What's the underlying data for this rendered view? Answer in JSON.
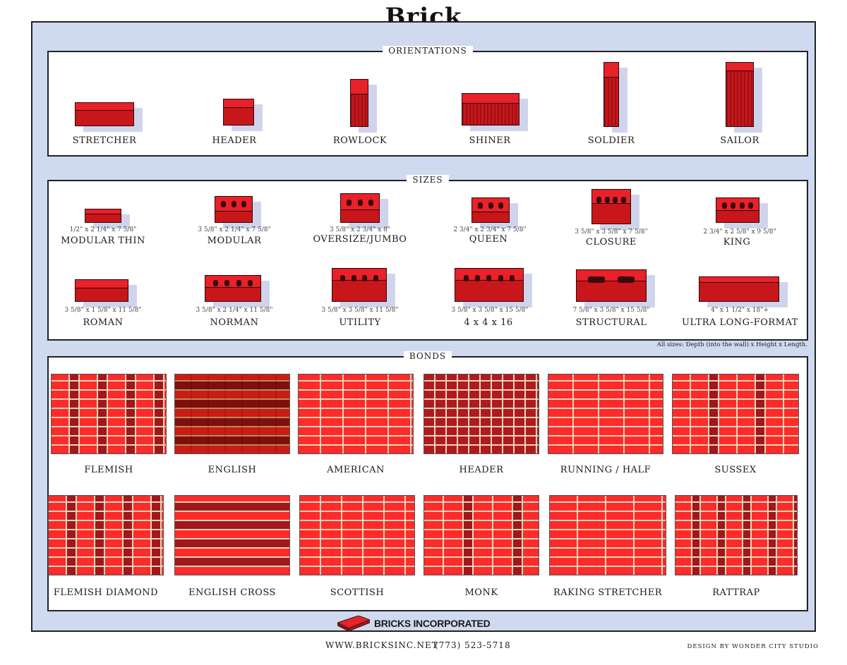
{
  "title": "Brick",
  "orientations": {
    "heading": "ORIENTATIONS",
    "items": [
      "STRETCHER",
      "HEADER",
      "ROWLOCK",
      "SHINER",
      "SOLDIER",
      "SAILOR"
    ]
  },
  "sizes": {
    "heading": "SIZES",
    "row1": [
      {
        "name": "MODULAR THIN",
        "dim": "1/2\" x 2 1/4\" x 7 5/8\""
      },
      {
        "name": "MODULAR",
        "dim": "3 5/8\" x 2 1/4\" x 7 5/8\""
      },
      {
        "name": "OVERSIZE/JUMBO",
        "dim": "3 5/8\" x 2 3/4\" x 8\""
      },
      {
        "name": "QUEEN",
        "dim": "2 3/4\" x 2 3/4\" x 7 5/8\""
      },
      {
        "name": "CLOSURE",
        "dim": "3 5/8\" x 3 5/8\" x 7 5/8\""
      },
      {
        "name": "KING",
        "dim": "2 3/4\" x 2 5/8\" x 9 5/8\""
      }
    ],
    "row2": [
      {
        "name": "ROMAN",
        "dim": "3 5/8\" x 1 5/8\" x 11 5/8\""
      },
      {
        "name": "NORMAN",
        "dim": "3 5/8\" x 2 1/4\" x 11 5/8\""
      },
      {
        "name": "UTILITY",
        "dim": "3 5/8\" x 3 5/8\" x 11 5/8\""
      },
      {
        "name": "4 x 4 x 16",
        "dim": "3 5/8\" x 3 5/8\" x 15 5/8\""
      },
      {
        "name": "STRUCTURAL",
        "dim": "7 5/8\" x 3 5/8\" x 15 5/8\""
      },
      {
        "name": "ULTRA LONG-FORMAT",
        "dim": "4\" x 1 1/2\" x 18\"+"
      }
    ],
    "note": "All sizes: Depth (into the wall) x Height x Length."
  },
  "bonds": {
    "heading": "BONDS",
    "row1": [
      "FLEMISH",
      "ENGLISH",
      "AMERICAN",
      "HEADER",
      "RUNNING / HALF",
      "SUSSEX"
    ],
    "row2": [
      "FLEMISH DIAMOND",
      "ENGLISH CROSS",
      "SCOTTISH",
      "MONK",
      "RAKING STRETCHER",
      "RATTRAP"
    ]
  },
  "company": "BRICKS INCORPORATED",
  "website": "WWW.BRICKSINC.NET",
  "phone": "(773) 523-5718",
  "credit": "DESIGN BY WONDER CITY STUDIO",
  "colors": {
    "brick": "#c8161b",
    "brick_top": "#e8212a",
    "frame": "#cfd9ef"
  }
}
